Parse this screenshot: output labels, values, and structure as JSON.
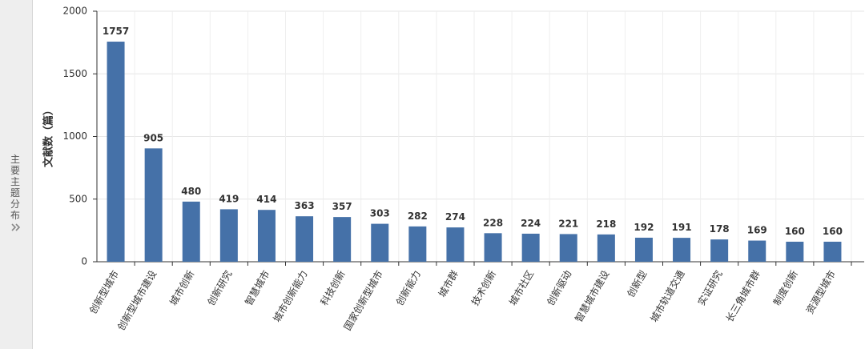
{
  "sidebar_label": "主要主题分布",
  "chart_data": {
    "type": "bar",
    "y_label": "文献数（篇）",
    "categories": [
      "创新型城市",
      "创新型城市建设",
      "城市创新",
      "创新研究",
      "智慧城市",
      "城市创新能力",
      "科技创新",
      "国家创新型城市",
      "创新能力",
      "城市群",
      "技术创新",
      "城市社区",
      "创新驱动",
      "智慧城市建设",
      "创新型",
      "城市轨道交通",
      "实证研究",
      "长三角城市群",
      "制度创新",
      "资源型城市"
    ],
    "values": [
      1757,
      905,
      480,
      419,
      414,
      363,
      357,
      303,
      282,
      274,
      228,
      224,
      221,
      218,
      192,
      191,
      178,
      169,
      160,
      160
    ],
    "color": "#4571a8",
    "ylim": [
      0,
      2000
    ],
    "yticks": [
      0,
      500,
      1000,
      1500,
      2000
    ],
    "grid": true
  }
}
